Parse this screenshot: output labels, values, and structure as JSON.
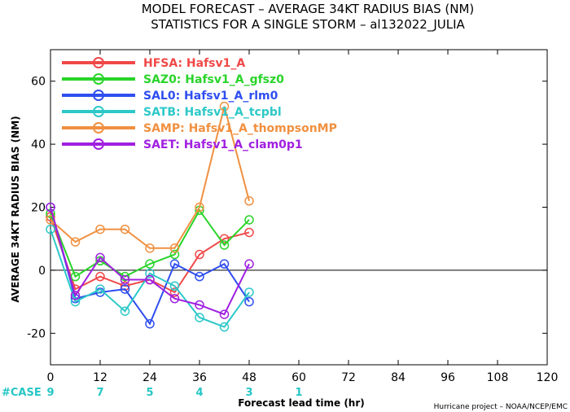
{
  "chart_data": {
    "type": "line",
    "title": "MODEL FORECAST – AVERAGE 34KT RADIUS BIAS (NM)",
    "subtitle": "STATISTICS FOR A SINGLE STORM – al132022_JULIA",
    "xlabel": "Forecast lead time (hr)",
    "ylabel": "AVERAGE 34KT RADIUS BIAS (NM)",
    "xlim": [
      0,
      120
    ],
    "ylim": [
      -30,
      70
    ],
    "x_ticks": [
      0,
      12,
      24,
      36,
      48,
      60,
      72,
      84,
      96,
      108,
      120
    ],
    "y_ticks": [
      -20,
      0,
      20,
      40,
      60
    ],
    "x": [
      0,
      6,
      12,
      18,
      24,
      30,
      36,
      42,
      48
    ],
    "series": [
      {
        "name": "HFSA: Hafsv1_A",
        "color": "#f04848",
        "values": [
          17,
          -6,
          -2,
          -5,
          -3,
          -7,
          5,
          10,
          12
        ]
      },
      {
        "name": "SAZ0: Hafsv1_A_gfsz0",
        "color": "#2ad42a",
        "values": [
          18,
          -2,
          3,
          -2,
          2,
          5,
          19,
          8,
          16
        ]
      },
      {
        "name": "SAL0: Hafsv1_A_rlm0",
        "color": "#2f4ef0",
        "values": [
          20,
          -9,
          -7,
          -6,
          -17,
          2,
          -2,
          2,
          -10
        ]
      },
      {
        "name": "SATB: Hafsv1_A_tcpbl",
        "color": "#2ec8c8",
        "values": [
          13,
          -10,
          -6,
          -13,
          -1,
          -5,
          -15,
          -18,
          -7
        ]
      },
      {
        "name": "SAMP: Hafsv1_A_thompsonMP",
        "color": "#f09040",
        "values": [
          16,
          9,
          13,
          13,
          7,
          7,
          20,
          52,
          22
        ]
      },
      {
        "name": "SAET: Hafsv1_A_clam0p1",
        "color": "#a020e0",
        "values": [
          20,
          -8,
          4,
          -3,
          -3,
          -9,
          -11,
          -14,
          2
        ]
      }
    ],
    "zero_line": true,
    "grid": false,
    "legend_position": "top-left",
    "case_counts": {
      "label": "#CASE",
      "color": "#26c6c6",
      "hours": [
        0,
        12,
        24,
        36,
        48,
        60
      ],
      "values": [
        "9",
        "7",
        "5",
        "4",
        "3",
        "1"
      ]
    },
    "footer": "Hurricane project – NOAA/NCEP/EMC"
  }
}
